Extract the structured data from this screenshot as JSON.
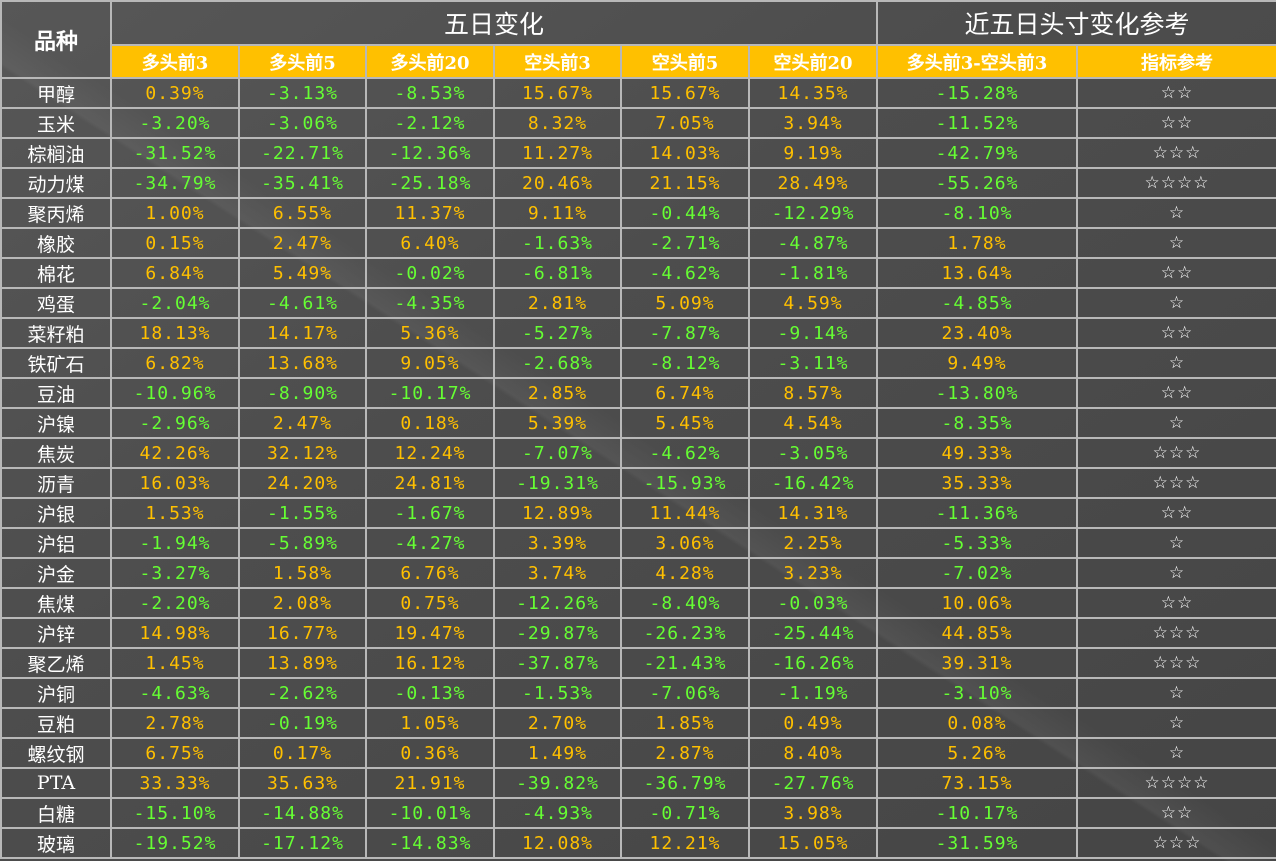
{
  "header": {
    "pinzhong": "品种",
    "group_five_day": "五日变化",
    "group_recent": "近五日头寸变化参考",
    "columns": [
      "多头前3",
      "多头前5",
      "多头前20",
      "空头前3",
      "空头前5",
      "空头前20",
      "多头前3-空头前3",
      "指标参考"
    ]
  },
  "colors": {
    "positive": "#ffc000",
    "negative": "#66ff33",
    "subheader_bg": "#ffc000"
  },
  "rows": [
    {
      "name": "甲醇",
      "values": [
        "0.39%",
        "-3.13%",
        "-8.53%",
        "15.67%",
        "15.67%",
        "14.35%",
        "-15.28%"
      ],
      "stars": "☆☆"
    },
    {
      "name": "玉米",
      "values": [
        "-3.20%",
        "-3.06%",
        "-2.12%",
        "8.32%",
        "7.05%",
        "3.94%",
        "-11.52%"
      ],
      "stars": "☆☆"
    },
    {
      "name": "棕榈油",
      "values": [
        "-31.52%",
        "-22.71%",
        "-12.36%",
        "11.27%",
        "14.03%",
        "9.19%",
        "-42.79%"
      ],
      "stars": "☆☆☆"
    },
    {
      "name": "动力煤",
      "values": [
        "-34.79%",
        "-35.41%",
        "-25.18%",
        "20.46%",
        "21.15%",
        "28.49%",
        "-55.26%"
      ],
      "stars": "☆☆☆☆"
    },
    {
      "name": "聚丙烯",
      "values": [
        "1.00%",
        "6.55%",
        "11.37%",
        "9.11%",
        "-0.44%",
        "-12.29%",
        "-8.10%"
      ],
      "stars": "☆"
    },
    {
      "name": "橡胶",
      "values": [
        "0.15%",
        "2.47%",
        "6.40%",
        "-1.63%",
        "-2.71%",
        "-4.87%",
        "1.78%"
      ],
      "stars": "☆"
    },
    {
      "name": "棉花",
      "values": [
        "6.84%",
        "5.49%",
        "-0.02%",
        "-6.81%",
        "-4.62%",
        "-1.81%",
        "13.64%"
      ],
      "stars": "☆☆"
    },
    {
      "name": "鸡蛋",
      "values": [
        "-2.04%",
        "-4.61%",
        "-4.35%",
        "2.81%",
        "5.09%",
        "4.59%",
        "-4.85%"
      ],
      "stars": "☆"
    },
    {
      "name": "菜籽粕",
      "values": [
        "18.13%",
        "14.17%",
        "5.36%",
        "-5.27%",
        "-7.87%",
        "-9.14%",
        "23.40%"
      ],
      "stars": "☆☆"
    },
    {
      "name": "铁矿石",
      "values": [
        "6.82%",
        "13.68%",
        "9.05%",
        "-2.68%",
        "-8.12%",
        "-3.11%",
        "9.49%"
      ],
      "stars": "☆"
    },
    {
      "name": "豆油",
      "values": [
        "-10.96%",
        "-8.90%",
        "-10.17%",
        "2.85%",
        "6.74%",
        "8.57%",
        "-13.80%"
      ],
      "stars": "☆☆"
    },
    {
      "name": "沪镍",
      "values": [
        "-2.96%",
        "2.47%",
        "0.18%",
        "5.39%",
        "5.45%",
        "4.54%",
        "-8.35%"
      ],
      "stars": "☆"
    },
    {
      "name": "焦炭",
      "values": [
        "42.26%",
        "32.12%",
        "12.24%",
        "-7.07%",
        "-4.62%",
        "-3.05%",
        "49.33%"
      ],
      "stars": "☆☆☆"
    },
    {
      "name": "沥青",
      "values": [
        "16.03%",
        "24.20%",
        "24.81%",
        "-19.31%",
        "-15.93%",
        "-16.42%",
        "35.33%"
      ],
      "stars": "☆☆☆"
    },
    {
      "name": "沪银",
      "values": [
        "1.53%",
        "-1.55%",
        "-1.67%",
        "12.89%",
        "11.44%",
        "14.31%",
        "-11.36%"
      ],
      "stars": "☆☆"
    },
    {
      "name": "沪铝",
      "values": [
        "-1.94%",
        "-5.89%",
        "-4.27%",
        "3.39%",
        "3.06%",
        "2.25%",
        "-5.33%"
      ],
      "stars": "☆"
    },
    {
      "name": "沪金",
      "values": [
        "-3.27%",
        "1.58%",
        "6.76%",
        "3.74%",
        "4.28%",
        "3.23%",
        "-7.02%"
      ],
      "stars": "☆"
    },
    {
      "name": "焦煤",
      "values": [
        "-2.20%",
        "2.08%",
        "0.75%",
        "-12.26%",
        "-8.40%",
        "-0.03%",
        "10.06%"
      ],
      "stars": "☆☆"
    },
    {
      "name": "沪锌",
      "values": [
        "14.98%",
        "16.77%",
        "19.47%",
        "-29.87%",
        "-26.23%",
        "-25.44%",
        "44.85%"
      ],
      "stars": "☆☆☆"
    },
    {
      "name": "聚乙烯",
      "values": [
        "1.45%",
        "13.89%",
        "16.12%",
        "-37.87%",
        "-21.43%",
        "-16.26%",
        "39.31%"
      ],
      "stars": "☆☆☆"
    },
    {
      "name": "沪铜",
      "values": [
        "-4.63%",
        "-2.62%",
        "-0.13%",
        "-1.53%",
        "-7.06%",
        "-1.19%",
        "-3.10%"
      ],
      "stars": "☆"
    },
    {
      "name": "豆粕",
      "values": [
        "2.78%",
        "-0.19%",
        "1.05%",
        "2.70%",
        "1.85%",
        "0.49%",
        "0.08%"
      ],
      "stars": "☆"
    },
    {
      "name": "螺纹钢",
      "values": [
        "6.75%",
        "0.17%",
        "0.36%",
        "1.49%",
        "2.87%",
        "8.40%",
        "5.26%"
      ],
      "stars": "☆"
    },
    {
      "name": "PTA",
      "values": [
        "33.33%",
        "35.63%",
        "21.91%",
        "-39.82%",
        "-36.79%",
        "-27.76%",
        "73.15%"
      ],
      "stars": "☆☆☆☆"
    },
    {
      "name": "白糖",
      "values": [
        "-15.10%",
        "-14.88%",
        "-10.01%",
        "-4.93%",
        "-0.71%",
        "3.98%",
        "-10.17%"
      ],
      "stars": "☆☆"
    },
    {
      "name": "玻璃",
      "values": [
        "-19.52%",
        "-17.12%",
        "-14.83%",
        "12.08%",
        "12.21%",
        "15.05%",
        "-31.59%"
      ],
      "stars": "☆☆☆"
    }
  ]
}
